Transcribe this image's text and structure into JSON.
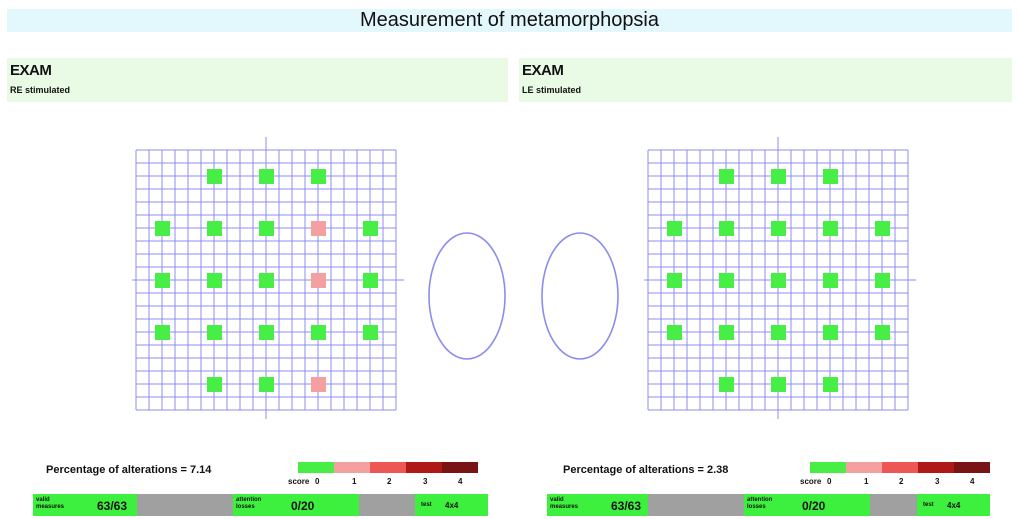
{
  "title": "Measurement of metamorphopsia",
  "colors": {
    "grid": "#8c8cf0",
    "score0": "#46ee46",
    "score1": "#f4a0a0",
    "score2": "#ee5555",
    "score3": "#b01818",
    "score4": "#7a1414"
  },
  "right_eye": {
    "exam_label": "EXAM",
    "stimulated_label": "RE stimulated",
    "markers": [
      [
        0,
        1,
        0
      ],
      [
        0,
        2,
        0
      ],
      [
        0,
        3,
        0
      ],
      [
        1,
        0,
        0
      ],
      [
        1,
        1,
        0
      ],
      [
        1,
        2,
        0
      ],
      [
        1,
        3,
        1
      ],
      [
        1,
        4,
        0
      ],
      [
        2,
        0,
        0
      ],
      [
        2,
        1,
        0
      ],
      [
        2,
        2,
        0
      ],
      [
        2,
        3,
        1
      ],
      [
        2,
        4,
        0
      ],
      [
        3,
        0,
        0
      ],
      [
        3,
        1,
        0
      ],
      [
        3,
        2,
        0
      ],
      [
        3,
        3,
        0
      ],
      [
        3,
        4,
        0
      ],
      [
        4,
        1,
        0
      ],
      [
        4,
        2,
        0
      ],
      [
        4,
        3,
        1
      ]
    ],
    "percentage_text": "Percentage of alterations = 7.14",
    "valid_label": "valid measures",
    "valid_value": "63/63",
    "attention_label": "attention losses",
    "attention_value": "0/20",
    "test_label": "test",
    "test_value": "4x4"
  },
  "left_eye": {
    "exam_label": "EXAM",
    "stimulated_label": "LE stimulated",
    "markers": [
      [
        0,
        1,
        0
      ],
      [
        0,
        2,
        0
      ],
      [
        0,
        3,
        0
      ],
      [
        1,
        0,
        0
      ],
      [
        1,
        1,
        0
      ],
      [
        1,
        2,
        0
      ],
      [
        1,
        3,
        0
      ],
      [
        1,
        4,
        0
      ],
      [
        2,
        0,
        0
      ],
      [
        2,
        1,
        0
      ],
      [
        2,
        2,
        0
      ],
      [
        2,
        3,
        0
      ],
      [
        2,
        4,
        0
      ],
      [
        3,
        0,
        0
      ],
      [
        3,
        1,
        0
      ],
      [
        3,
        2,
        0
      ],
      [
        3,
        3,
        0
      ],
      [
        3,
        4,
        0
      ],
      [
        4,
        1,
        0
      ],
      [
        4,
        2,
        0
      ],
      [
        4,
        3,
        0
      ]
    ],
    "percentage_text": "Percentage of alterations = 2.38",
    "valid_label": "valid measures",
    "valid_value": "63/63",
    "attention_label": "attention losses",
    "attention_value": "0/20",
    "test_label": "test",
    "test_value": "4x4"
  },
  "score_legend": {
    "label": "score",
    "values": [
      "0",
      "1",
      "2",
      "3",
      "4"
    ]
  }
}
